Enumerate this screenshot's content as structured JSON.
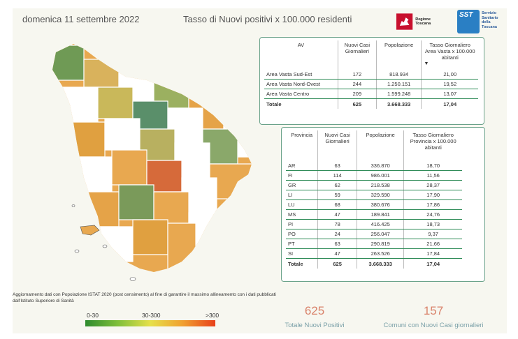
{
  "header": {
    "date": "domenica 11 settembre 2022",
    "title": "Tasso di Nuovi positivi x 100.000 residenti"
  },
  "logos": {
    "regione": "Regione Toscana",
    "sst_mark": "SST",
    "sst_text": [
      "Servizio",
      "Sanitario",
      "della",
      "Toscana"
    ]
  },
  "av_table": {
    "headers": [
      "AV",
      "Nuovi Casi Giornalieri",
      "Popolazione",
      "Tasso Giornaliero Area Vasta x 100.000 abitanti"
    ],
    "rows": [
      [
        "Area Vasta Sud-Est",
        "172",
        "818.934",
        "21,00"
      ],
      [
        "Area Vasta Nord-Ovest",
        "244",
        "1.250.151",
        "19,52"
      ],
      [
        "Area Vasta Centro",
        "209",
        "1.599.248",
        "13,07"
      ]
    ],
    "total": [
      "Totale",
      "625",
      "3.668.333",
      "17,04"
    ]
  },
  "prov_table": {
    "headers": [
      "Provincia",
      "Nuovi Casi Giornalieri",
      "Popolazione",
      "Tasso Giornaliero Provincia x 100.000 abitanti"
    ],
    "rows": [
      [
        "AR",
        "63",
        "336.870",
        "18,70"
      ],
      [
        "FI",
        "114",
        "986.001",
        "11,56"
      ],
      [
        "GR",
        "62",
        "218.538",
        "28,37"
      ],
      [
        "LI",
        "59",
        "329.590",
        "17,90"
      ],
      [
        "LU",
        "68",
        "380.676",
        "17,86"
      ],
      [
        "MS",
        "47",
        "189.841",
        "24,76"
      ],
      [
        "PI",
        "78",
        "416.425",
        "18,73"
      ],
      [
        "PO",
        "24",
        "256.047",
        "9,37"
      ],
      [
        "PT",
        "63",
        "290.819",
        "21,66"
      ],
      [
        "SI",
        "47",
        "263.526",
        "17,84"
      ]
    ],
    "total": [
      "Totale",
      "625",
      "3.668.333",
      "17,04"
    ]
  },
  "note": "Aggiornamento dati con Popolazione ISTAT 2020 (post censimento) al fine di garantire il massimo allineamento con i dati pubblicati dall'Istituto Superiore di Sanità",
  "legend": {
    "low": "0-30",
    "mid": "30-300",
    "high": ">300"
  },
  "kpis": [
    {
      "value": "625",
      "label": "Totale Nuovi Positivi"
    },
    {
      "value": "157",
      "label": "Comuni con Nuovi Casi giornalieri"
    }
  ],
  "colors": {
    "accent": "#d9826a",
    "table_border": "#6aa28a",
    "row_line": "#2e8b57"
  }
}
